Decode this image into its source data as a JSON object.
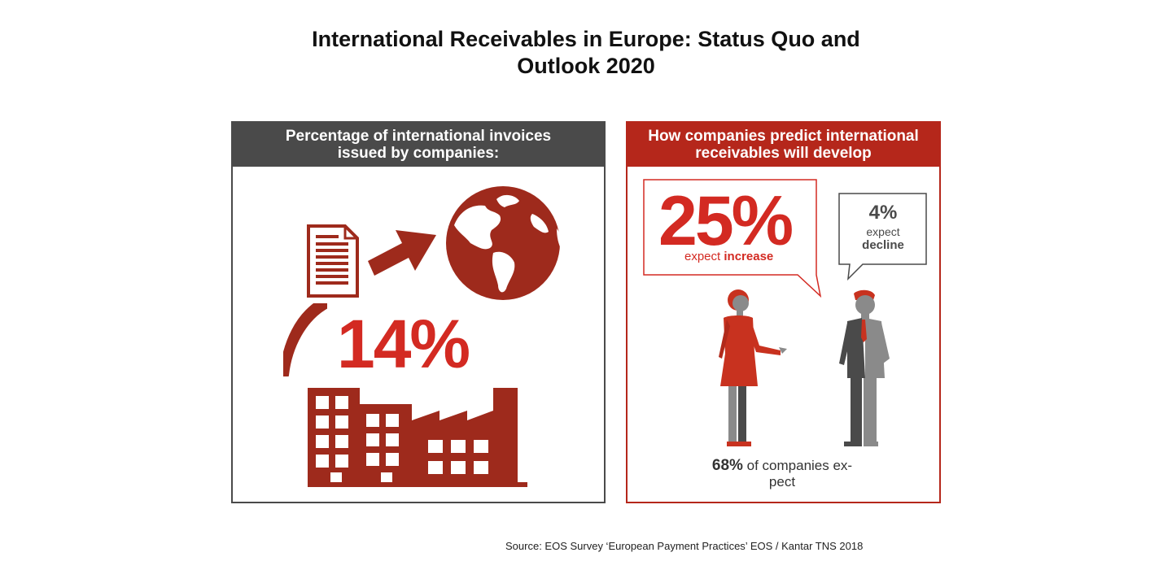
{
  "title": {
    "line1": "International Receivables in Europe: Status Quo and",
    "line2": "Outlook 2020"
  },
  "left_panel": {
    "header_line1": "Percentage of international invoices",
    "header_line2": "issued by companies:",
    "value": "14%",
    "icons": [
      "document-icon",
      "arrow-right-icon",
      "globe-icon",
      "factory-icon"
    ]
  },
  "right_panel": {
    "header_line1": "How companies predict international",
    "header_line2": "receivables will develop",
    "increase": {
      "value": "25%",
      "label_prefix": "expect ",
      "label_bold": "increase"
    },
    "decline": {
      "value": "4%",
      "label_line1": "expect",
      "label_line2": "decline"
    },
    "caption": {
      "value": "68%",
      "text_line1": " of companies ex-",
      "text_line2": "pect"
    },
    "icons": [
      "businesswoman-icon",
      "businessman-icon"
    ]
  },
  "source": "Source: EOS Survey ‘European Payment Practices’ EOS / Kantar TNS 2018",
  "colors": {
    "accent_red": "#d32a22",
    "dark_red": "#9e2a1c",
    "panel_grey": "#4a4a4a"
  }
}
